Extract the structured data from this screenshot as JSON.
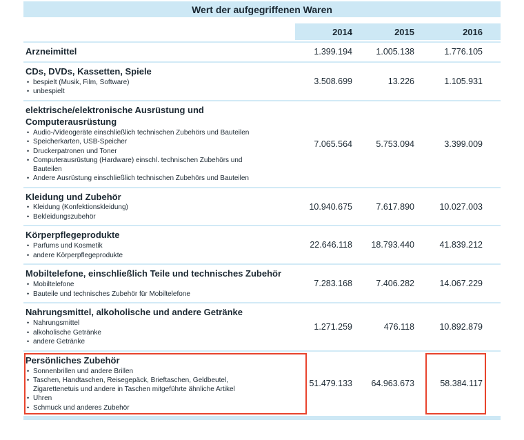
{
  "colors": {
    "header_bg": "#cde8f5",
    "separator": "#d2eaf6",
    "text": "#1b2832",
    "highlight_border": "#e8432c"
  },
  "chart_data": {
    "type": "table",
    "title": "Wert der aufgegriffenen Waren",
    "columns": [
      "2014",
      "2015",
      "2016"
    ],
    "rows": [
      {
        "category": "Arzneimittel",
        "items": [],
        "values": [
          "1.399.194",
          "1.005.138",
          "1.776.105"
        ]
      },
      {
        "category": "CDs, DVDs, Kassetten, Spiele",
        "items": [
          "bespielt (Musik, Film, Software)",
          "unbespielt"
        ],
        "values": [
          "3.508.699",
          "13.226",
          "1.105.931"
        ]
      },
      {
        "category": "elektrische/elektronische Ausrüstung und Computerausrüstung",
        "items": [
          "Audio-/Videogeräte einschließlich technischen Zubehörs und Bauteilen",
          "Speicherkarten, USB-Speicher",
          "Druckerpatronen und Toner",
          "Computerausrüstung (Hardware) einschl. technischen Zubehörs und Bauteilen",
          "Andere Ausrüstung einschließlich technischen Zubehörs und Bauteilen"
        ],
        "values": [
          "7.065.564",
          "5.753.094",
          "3.399.009"
        ]
      },
      {
        "category": "Kleidung und Zubehör",
        "items": [
          "Kleidung (Konfektionskleidung)",
          "Bekleidungszubehör"
        ],
        "values": [
          "10.940.675",
          "7.617.890",
          "10.027.003"
        ]
      },
      {
        "category": "Körperpflegeprodukte",
        "items": [
          "Parfums und Kosmetik",
          "andere Körperpflegeprodukte"
        ],
        "values": [
          "22.646.118",
          "18.793.440",
          "41.839.212"
        ]
      },
      {
        "category": "Mobiltelefone, einschließlich Teile und technisches Zubehör",
        "items": [
          "Mobiltelefone",
          "Bauteile und technisches Zubehör für Mobiltelefone"
        ],
        "values": [
          "7.283.168",
          "7.406.282",
          "14.067.229"
        ]
      },
      {
        "category": "Nahrungsmittel, alkoholische und andere Getränke",
        "items": [
          "Nahrungsmittel",
          "alkoholische Getränke",
          "andere Getränke"
        ],
        "values": [
          "1.271.259",
          "476.118",
          "10.892.879"
        ]
      },
      {
        "category": "Persönliches Zubehör",
        "items": [
          "Sonnenbrillen und andere Brillen",
          "Taschen, Handtaschen, Reisegepäck, Brieftaschen, Geldbeutel, Zigarettenetuis und andere in Taschen mitgeführte ähnliche Artikel",
          "Uhren",
          "Schmuck und anderes Zubehör"
        ],
        "values": [
          "51.479.133",
          "64.963.673",
          "58.384.117"
        ],
        "highlight_row": true,
        "highlight_value_col": 2
      }
    ]
  }
}
